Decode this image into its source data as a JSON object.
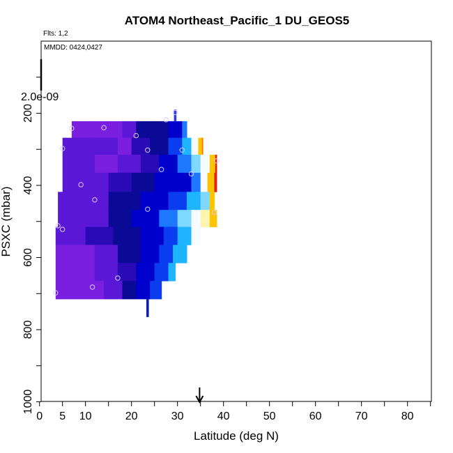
{
  "chart_data": {
    "type": "heatmap",
    "title": "ATOM4 Northeast_Pacific_1 DU_GEOS5",
    "flights_text": "Flts: 1,2",
    "dates_text": "MMDD: 0424,0427",
    "scale_text": "2.0e-09",
    "xlabel": "Latitude (deg N)",
    "ylabel": "PSXC (mbar)",
    "xlim": [
      0,
      85
    ],
    "ylim": [
      1000,
      0
    ],
    "x_ticks": [
      0,
      5,
      10,
      20,
      30,
      40,
      50,
      60,
      70,
      80
    ],
    "x_minor_ticks": [
      15,
      25,
      35,
      45,
      55,
      65,
      75,
      85
    ],
    "y_ticks": [
      200,
      400,
      600,
      800,
      1000
    ],
    "y_minor_ticks": [
      100,
      300,
      500,
      700,
      900
    ],
    "grid": false,
    "colors": [
      "#7a1fe0",
      "#5a17d6",
      "#2a0ab5",
      "#0a0a96",
      "#0000cc",
      "#0a3cf0",
      "#1e78ff",
      "#1eb4ff",
      "#7ed8ff",
      "#f5fbff",
      "#fff5b0",
      "#ffc400",
      "#ff7a00",
      "#e81e0a"
    ],
    "bands": [
      {
        "p_top": 222,
        "p_bot": 268,
        "x0": 7,
        "x1": 32.0,
        "start": "#7a1fe0",
        "stops": [
          {
            "x": 11,
            "c": 0
          },
          {
            "x": 15,
            "c": 0
          },
          {
            "x": 18,
            "c": 1
          },
          {
            "x": 21,
            "c": 3
          },
          {
            "x": 25,
            "c": 3
          },
          {
            "x": 28,
            "c": 4
          },
          {
            "x": 31,
            "c": 6
          }
        ]
      },
      {
        "p_top": 268,
        "p_bot": 315,
        "x0": 5,
        "x1": 35.5,
        "start": "#5a17d6",
        "stops": [
          {
            "x": 11,
            "c": 1
          },
          {
            "x": 17,
            "c": 0
          },
          {
            "x": 20,
            "c": 2
          },
          {
            "x": 24,
            "c": 3
          },
          {
            "x": 28,
            "c": 5
          },
          {
            "x": 31,
            "c": 7
          },
          {
            "x": 33,
            "c": 9
          },
          {
            "x": 34.5,
            "c": 11
          },
          {
            "x": 35.3,
            "c": 12
          }
        ]
      },
      {
        "p_top": 315,
        "p_bot": 365,
        "x0": 5,
        "x1": 38.5,
        "start": "#5a17d6",
        "stops": [
          {
            "x": 12,
            "c": 0
          },
          {
            "x": 17,
            "c": 1
          },
          {
            "x": 22,
            "c": 2
          },
          {
            "x": 26,
            "c": 4
          },
          {
            "x": 30,
            "c": 6
          },
          {
            "x": 33,
            "c": 8
          },
          {
            "x": 35,
            "c": 9
          },
          {
            "x": 37,
            "c": 11
          },
          {
            "x": 38.2,
            "c": 13
          }
        ]
      },
      {
        "p_top": 365,
        "p_bot": 418,
        "x0": 5,
        "x1": 38.5,
        "start": "#5a17d6",
        "stops": [
          {
            "x": 10,
            "c": 1
          },
          {
            "x": 15,
            "c": 2
          },
          {
            "x": 20,
            "c": 3
          },
          {
            "x": 25,
            "c": 4
          },
          {
            "x": 30,
            "c": 4
          },
          {
            "x": 33,
            "c": 6
          },
          {
            "x": 35,
            "c": 9
          },
          {
            "x": 36.5,
            "c": 11
          },
          {
            "x": 38,
            "c": 13
          }
        ]
      },
      {
        "p_top": 418,
        "p_bot": 468,
        "x0": 4,
        "x1": 38.0,
        "start": "#5a17d6",
        "stops": [
          {
            "x": 10,
            "c": 1
          },
          {
            "x": 15,
            "c": 3
          },
          {
            "x": 22,
            "c": 4
          },
          {
            "x": 28,
            "c": 5
          },
          {
            "x": 32,
            "c": 7
          },
          {
            "x": 35,
            "c": 8
          },
          {
            "x": 37,
            "c": 11
          }
        ]
      },
      {
        "p_top": 468,
        "p_bot": 515,
        "x0": 4,
        "x1": 38.5,
        "start": "#5a17d6",
        "stops": [
          {
            "x": 10,
            "c": 1
          },
          {
            "x": 15,
            "c": 3
          },
          {
            "x": 20,
            "c": 4
          },
          {
            "x": 26,
            "c": 6
          },
          {
            "x": 30,
            "c": 8
          },
          {
            "x": 33,
            "c": 9
          },
          {
            "x": 35,
            "c": 10
          },
          {
            "x": 37,
            "c": 11
          }
        ]
      },
      {
        "p_top": 515,
        "p_bot": 565,
        "x0": 3.5,
        "x1": 35.0,
        "start": "#5a17d6",
        "stops": [
          {
            "x": 10,
            "c": 2
          },
          {
            "x": 16,
            "c": 3
          },
          {
            "x": 22,
            "c": 4
          },
          {
            "x": 27,
            "c": 5
          },
          {
            "x": 30,
            "c": 7
          },
          {
            "x": 33,
            "c": 9
          }
        ]
      },
      {
        "p_top": 565,
        "p_bot": 615,
        "x0": 3.5,
        "x1": 32.0,
        "start": "#7a1fe0",
        "stops": [
          {
            "x": 12,
            "c": 1
          },
          {
            "x": 17,
            "c": 3
          },
          {
            "x": 22,
            "c": 4
          },
          {
            "x": 26,
            "c": 5
          },
          {
            "x": 29,
            "c": 7
          }
        ]
      },
      {
        "p_top": 615,
        "p_bot": 665,
        "x0": 3.5,
        "x1": 29.5,
        "start": "#7a1fe0",
        "stops": [
          {
            "x": 12,
            "c": 1
          },
          {
            "x": 17,
            "c": 2
          },
          {
            "x": 21,
            "c": 4
          },
          {
            "x": 25,
            "c": 5
          },
          {
            "x": 28,
            "c": 7
          }
        ]
      },
      {
        "p_top": 665,
        "p_bot": 715,
        "x0": 3.5,
        "x1": 26.5,
        "start": "#7a1fe0",
        "stops": [
          {
            "x": 14,
            "c": 1
          },
          {
            "x": 18,
            "c": 3
          },
          {
            "x": 21,
            "c": 4
          },
          {
            "x": 24,
            "c": 5
          }
        ]
      }
    ],
    "columns": [
      {
        "x": 29.5,
        "p_top": 190,
        "p_bot": 222,
        "color": "#2a3cf0"
      },
      {
        "x": 23.5,
        "p_top": 715,
        "p_bot": 765,
        "color": "#0a1fb4"
      }
    ],
    "points": [
      {
        "x": 7,
        "p": 242
      },
      {
        "x": 14,
        "p": 240
      },
      {
        "x": 21,
        "p": 262
      },
      {
        "x": 27.5,
        "p": 218
      },
      {
        "x": 29.5,
        "p": 198
      },
      {
        "x": 5,
        "p": 298
      },
      {
        "x": 23.5,
        "p": 302
      },
      {
        "x": 31,
        "p": 302
      },
      {
        "x": 26.5,
        "p": 356
      },
      {
        "x": 33,
        "p": 368
      },
      {
        "x": 38.5,
        "p": 332
      },
      {
        "x": 9,
        "p": 398
      },
      {
        "x": 12,
        "p": 440
      },
      {
        "x": 23.5,
        "p": 466
      },
      {
        "x": 38,
        "p": 475
      },
      {
        "x": 4,
        "p": 512
      },
      {
        "x": 5,
        "p": 522
      },
      {
        "x": 17,
        "p": 657
      },
      {
        "x": 11.5,
        "p": 682
      },
      {
        "x": 3.5,
        "p": 698
      }
    ],
    "arrow_x": 34.8,
    "scale_bar": {
      "p_top": 50,
      "p_bot": 137
    }
  }
}
